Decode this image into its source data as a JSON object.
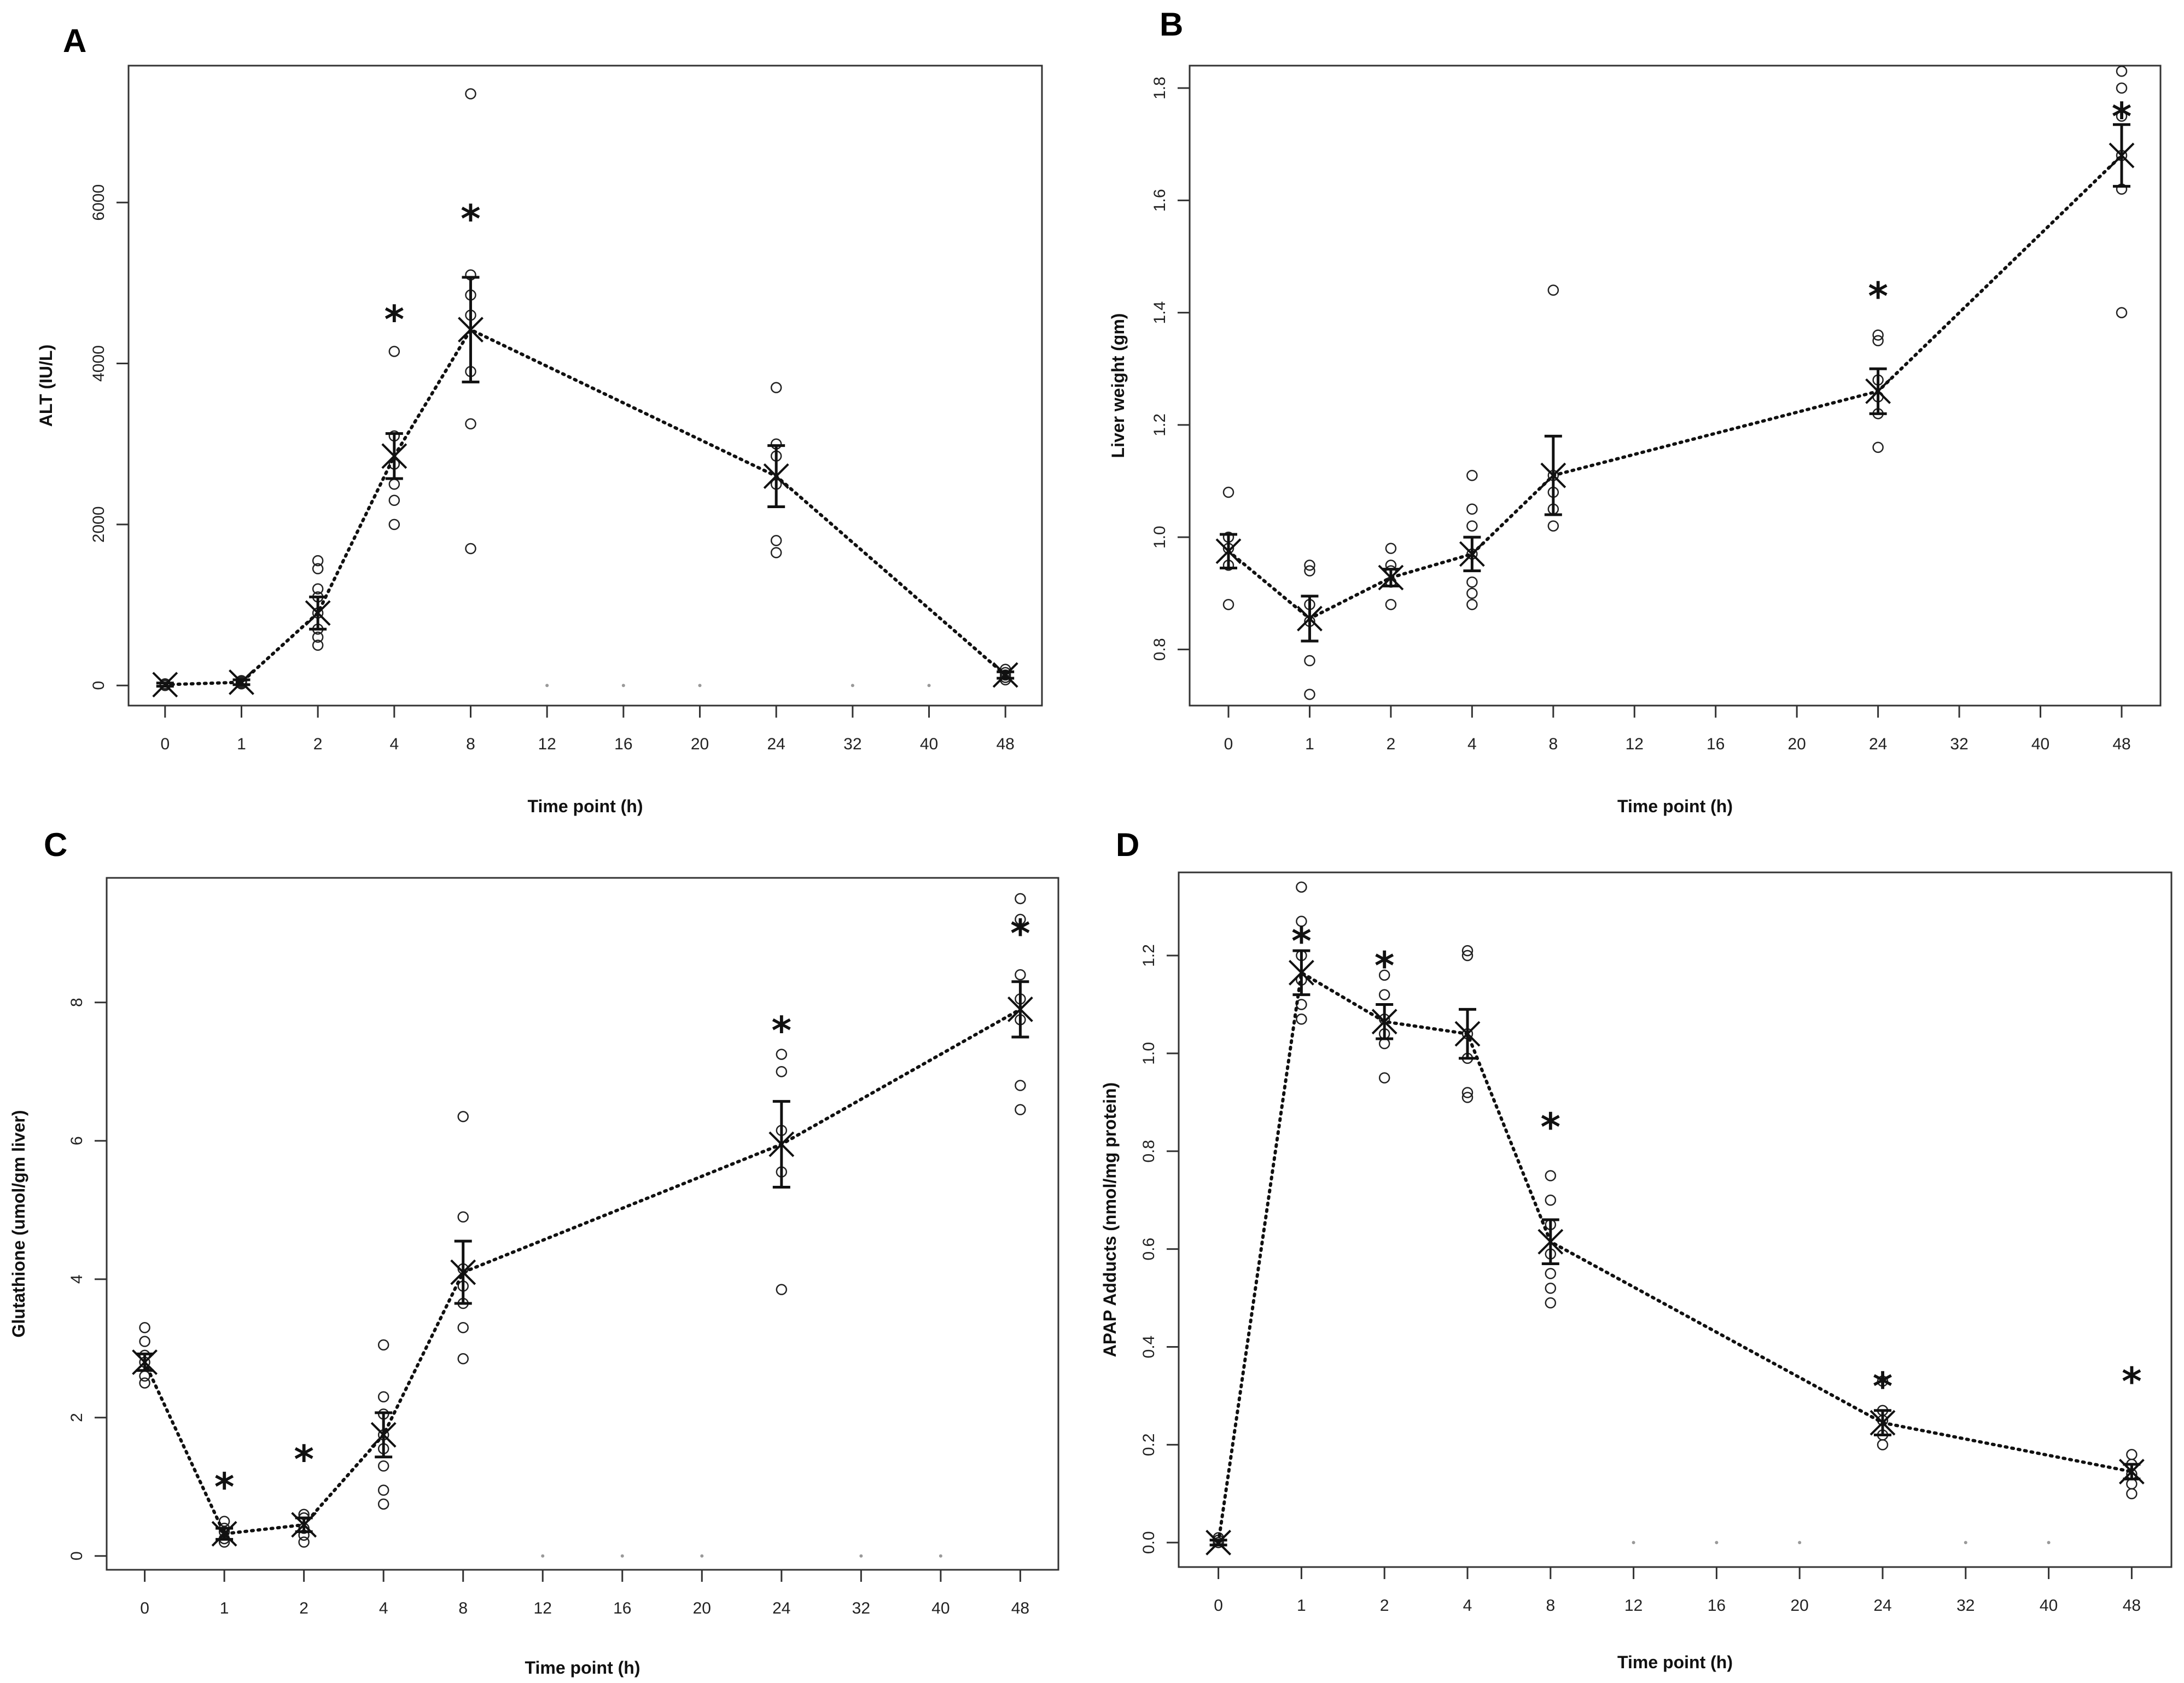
{
  "chart_data": [
    {
      "type": "scatter",
      "panel": "A",
      "xlabel": "Time point (h)",
      "ylabel": "ALT (IU/L)",
      "x_ticks": [
        "0",
        "1",
        "2",
        "4",
        "8",
        "12",
        "16",
        "20",
        "24",
        "32",
        "40",
        "48"
      ],
      "y_ticks": [
        {
          "value": 0,
          "label": "0"
        },
        {
          "value": 2000,
          "label": "2000"
        },
        {
          "value": 4000,
          "label": "4000"
        },
        {
          "value": 6000,
          "label": "6000"
        }
      ],
      "ylim": [
        -250,
        7700
      ],
      "series": [
        {
          "name": "mean",
          "x": [
            "0",
            "1",
            "2",
            "4",
            "8",
            "24",
            "48"
          ],
          "values": [
            10,
            40,
            900,
            2850,
            4420,
            2600,
            130
          ],
          "error": [
            20,
            30,
            200,
            280,
            650,
            380,
            40
          ]
        },
        {
          "name": "individual",
          "points": [
            {
              "x": "0",
              "values": [
                0,
                10,
                20,
                5,
                15
              ]
            },
            {
              "x": "1",
              "values": [
                20,
                40,
                60,
                30,
                50
              ]
            },
            {
              "x": "2",
              "values": [
                500,
                600,
                700,
                900,
                1100,
                1200,
                1450,
                1550
              ]
            },
            {
              "x": "4",
              "values": [
                2000,
                2300,
                2500,
                2750,
                3100,
                4150
              ]
            },
            {
              "x": "8",
              "values": [
                1700,
                3250,
                3900,
                4600,
                4850,
                5100,
                7350
              ]
            },
            {
              "x": "24",
              "values": [
                1650,
                1800,
                2500,
                2850,
                3000,
                3700
              ]
            },
            {
              "x": "48",
              "values": [
                70,
                100,
                130,
                160,
                200
              ]
            }
          ]
        }
      ],
      "significance": [
        {
          "x": "4",
          "y": 4550,
          "label": "*"
        },
        {
          "x": "8",
          "y": 5800,
          "label": "*"
        }
      ],
      "faint_markers": [
        {
          "x": "12",
          "y": 0
        },
        {
          "x": "16",
          "y": 0
        },
        {
          "x": "20",
          "y": 0
        },
        {
          "x": "32",
          "y": 0
        },
        {
          "x": "40",
          "y": 0
        }
      ]
    },
    {
      "type": "scatter",
      "panel": "B",
      "xlabel": "Time point (h)",
      "ylabel": "Liver weight (gm)",
      "x_ticks": [
        "0",
        "1",
        "2",
        "4",
        "8",
        "12",
        "16",
        "20",
        "24",
        "32",
        "40",
        "48"
      ],
      "y_ticks": [
        {
          "value": 0.8,
          "label": "0.8"
        },
        {
          "value": 1.0,
          "label": "1.0"
        },
        {
          "value": 1.2,
          "label": "1.2"
        },
        {
          "value": 1.4,
          "label": "1.4"
        },
        {
          "value": 1.6,
          "label": "1.6"
        },
        {
          "value": 1.8,
          "label": "1.8"
        }
      ],
      "ylim": [
        0.7,
        1.84
      ],
      "series": [
        {
          "name": "mean",
          "x": [
            "0",
            "1",
            "2",
            "4",
            "8",
            "24",
            "48"
          ],
          "values": [
            0.975,
            0.855,
            0.928,
            0.97,
            1.11,
            1.26,
            1.68
          ],
          "error": [
            0.03,
            0.04,
            0.015,
            0.03,
            0.07,
            0.04,
            0.055
          ]
        },
        {
          "name": "individual",
          "points": [
            {
              "x": "0",
              "values": [
                0.88,
                0.95,
                0.98,
                1.0,
                1.08
              ]
            },
            {
              "x": "1",
              "values": [
                0.72,
                0.78,
                0.85,
                0.88,
                0.94,
                0.95
              ]
            },
            {
              "x": "2",
              "values": [
                0.88,
                0.92,
                0.94,
                0.95,
                0.98
              ]
            },
            {
              "x": "4",
              "values": [
                0.88,
                0.9,
                0.92,
                0.97,
                1.02,
                1.05,
                1.11
              ]
            },
            {
              "x": "8",
              "values": [
                1.02,
                1.05,
                1.08,
                1.11,
                1.44
              ]
            },
            {
              "x": "24",
              "values": [
                1.16,
                1.22,
                1.25,
                1.28,
                1.35,
                1.36
              ]
            },
            {
              "x": "48",
              "values": [
                1.4,
                1.62,
                1.68,
                1.75,
                1.8,
                1.83
              ]
            }
          ]
        }
      ],
      "significance": [
        {
          "x": "24",
          "y": 1.43,
          "label": "*"
        },
        {
          "x": "48",
          "y": 1.75,
          "label": "*"
        }
      ],
      "faint_markers": []
    },
    {
      "type": "scatter",
      "panel": "C",
      "xlabel": "Time point (h)",
      "ylabel": "Glutathione (umol/gm liver)",
      "x_ticks": [
        "0",
        "1",
        "2",
        "4",
        "8",
        "12",
        "16",
        "20",
        "24",
        "32",
        "40",
        "48"
      ],
      "y_ticks": [
        {
          "value": 0,
          "label": "0"
        },
        {
          "value": 2,
          "label": "2"
        },
        {
          "value": 4,
          "label": "4"
        },
        {
          "value": 6,
          "label": "6"
        },
        {
          "value": 8,
          "label": "8"
        }
      ],
      "ylim": [
        -0.2,
        9.8
      ],
      "series": [
        {
          "name": "mean",
          "x": [
            "0",
            "1",
            "2",
            "4",
            "8",
            "24",
            "48"
          ],
          "values": [
            2.8,
            0.32,
            0.45,
            1.75,
            4.1,
            5.95,
            7.9
          ],
          "error": [
            0.12,
            0.08,
            0.1,
            0.32,
            0.45,
            0.62,
            0.4
          ]
        },
        {
          "name": "individual",
          "points": [
            {
              "x": "0",
              "values": [
                2.5,
                2.6,
                2.8,
                2.9,
                3.1,
                3.3
              ]
            },
            {
              "x": "1",
              "values": [
                0.2,
                0.25,
                0.35,
                0.4,
                0.5
              ]
            },
            {
              "x": "2",
              "values": [
                0.2,
                0.3,
                0.4,
                0.55,
                0.6
              ]
            },
            {
              "x": "4",
              "values": [
                0.75,
                0.95,
                1.3,
                1.55,
                1.75,
                2.05,
                2.3,
                3.05
              ]
            },
            {
              "x": "8",
              "values": [
                2.85,
                3.3,
                3.65,
                3.9,
                4.15,
                4.9,
                6.35
              ]
            },
            {
              "x": "24",
              "values": [
                3.85,
                5.55,
                6.15,
                7.0,
                7.25
              ]
            },
            {
              "x": "48",
              "values": [
                6.45,
                6.8,
                7.75,
                8.05,
                8.4,
                9.2,
                9.5
              ]
            }
          ]
        }
      ],
      "significance": [
        {
          "x": "1",
          "y": 1.0,
          "label": "*"
        },
        {
          "x": "2",
          "y": 1.4,
          "label": "*"
        },
        {
          "x": "24",
          "y": 7.6,
          "label": "*"
        },
        {
          "x": "48",
          "y": 9.0,
          "label": "*"
        }
      ],
      "faint_markers": [
        {
          "x": "12",
          "y": 0
        },
        {
          "x": "16",
          "y": 0
        },
        {
          "x": "20",
          "y": 0
        },
        {
          "x": "32",
          "y": 0
        },
        {
          "x": "40",
          "y": 0
        }
      ]
    },
    {
      "type": "scatter",
      "panel": "D",
      "xlabel": "Time point (h)",
      "ylabel": "APAP Adducts (nmol/mg protein)",
      "x_ticks": [
        "0",
        "1",
        "2",
        "4",
        "8",
        "12",
        "16",
        "20",
        "24",
        "32",
        "40",
        "48"
      ],
      "y_ticks": [
        {
          "value": 0,
          "label": "0.0"
        },
        {
          "value": 0.2,
          "label": "0.2"
        },
        {
          "value": 0.4,
          "label": "0.4"
        },
        {
          "value": 0.6,
          "label": "0.6"
        },
        {
          "value": 0.8,
          "label": "0.8"
        },
        {
          "value": 1.0,
          "label": "1.0"
        },
        {
          "value": 1.2,
          "label": "1.2"
        }
      ],
      "ylim": [
        -0.05,
        1.37
      ],
      "series": [
        {
          "name": "mean",
          "x": [
            "0",
            "1",
            "2",
            "4",
            "8",
            "24",
            "48"
          ],
          "values": [
            0,
            1.165,
            1.065,
            1.04,
            0.615,
            0.245,
            0.145
          ],
          "error": [
            0.005,
            0.045,
            0.035,
            0.05,
            0.045,
            0.025,
            0.015
          ]
        },
        {
          "name": "individual",
          "points": [
            {
              "x": "0",
              "values": [
                0,
                0.005,
                0.01
              ]
            },
            {
              "x": "1",
              "values": [
                1.07,
                1.1,
                1.15,
                1.2,
                1.27,
                1.34
              ]
            },
            {
              "x": "2",
              "values": [
                0.95,
                1.02,
                1.04,
                1.07,
                1.12,
                1.16
              ]
            },
            {
              "x": "4",
              "values": [
                0.91,
                0.92,
                0.99,
                1.04,
                1.2,
                1.21
              ]
            },
            {
              "x": "8",
              "values": [
                0.49,
                0.52,
                0.55,
                0.59,
                0.65,
                0.7,
                0.75
              ]
            },
            {
              "x": "24",
              "values": [
                0.2,
                0.22,
                0.25,
                0.27,
                0.33
              ]
            },
            {
              "x": "48",
              "values": [
                0.1,
                0.12,
                0.14,
                0.16,
                0.18
              ]
            }
          ]
        }
      ],
      "significance": [
        {
          "x": "1",
          "y": 1.23,
          "label": "*"
        },
        {
          "x": "2",
          "y": 1.18,
          "label": "*"
        },
        {
          "x": "8",
          "y": 0.85,
          "label": "*"
        },
        {
          "x": "24",
          "y": 0.32,
          "label": "*"
        },
        {
          "x": "48",
          "y": 0.33,
          "label": "*"
        }
      ],
      "faint_markers": [
        {
          "x": "12",
          "y": 0
        },
        {
          "x": "16",
          "y": 0
        },
        {
          "x": "20",
          "y": 0
        },
        {
          "x": "32",
          "y": 0
        },
        {
          "x": "40",
          "y": 0
        }
      ]
    }
  ]
}
